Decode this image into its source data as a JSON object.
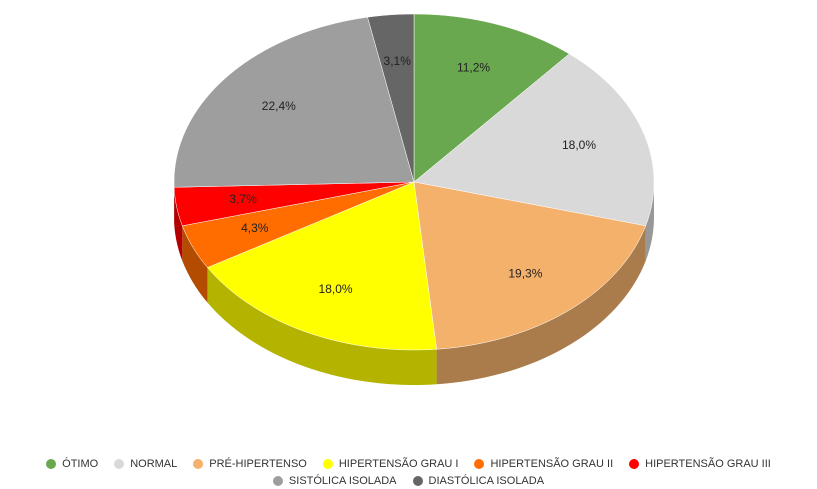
{
  "chart_data": {
    "type": "pie3d",
    "categories": [
      "ÓTIMO",
      "NORMAL",
      "PRÉ-HIPERTENSO",
      "HIPERTENSÃO GRAU I",
      "HIPERTENSÃO GRAU II",
      "HIPERTENSÃO GRAU III",
      "SISTÓLICA ISOLADA",
      "DIASTÓLICA ISOLADA"
    ],
    "values": [
      11.2,
      18.0,
      19.3,
      18.0,
      4.3,
      3.7,
      22.4,
      3.1
    ],
    "value_labels": [
      "11,2%",
      "18,0%",
      "19,3%",
      "18,0%",
      "4,3%",
      "3,7%",
      "22,4%",
      "3,1%"
    ],
    "colors": [
      "#6aa84f",
      "#d9d9d9",
      "#f4b16b",
      "#ffff00",
      "#ff6d01",
      "#ff0000",
      "#9e9e9e",
      "#666666"
    ],
    "legend": "bottom"
  }
}
